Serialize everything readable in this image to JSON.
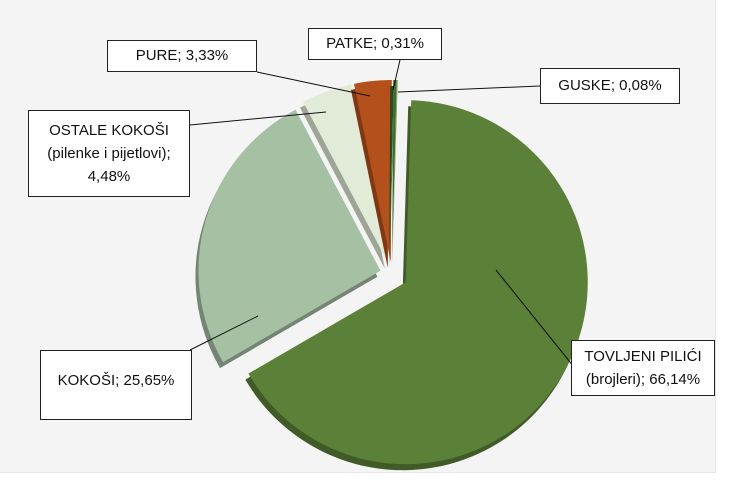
{
  "chart_data": {
    "type": "pie",
    "categories": [
      "TOVLJENI PILIĆI (brojleri)",
      "KOKOŠI",
      "OSTALE KOKOŠI (pilenke i pijetlovi)",
      "PURE",
      "PATKE",
      "GUSKE"
    ],
    "values": [
      66.14,
      25.65,
      4.48,
      3.33,
      0.31,
      0.08
    ],
    "value_labels": [
      "66,14%",
      "25,65%",
      "4,48%",
      "3,33%",
      "0,31%",
      "0,08%"
    ],
    "label_separator": "; ",
    "colors": [
      "#5b8139",
      "#a6c0a4",
      "#e2ebd8",
      "#b4501c",
      "#3f6a2c",
      "#7aa35a"
    ]
  }
}
